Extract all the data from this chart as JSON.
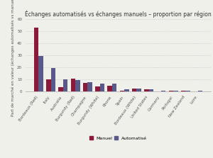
{
  "title": "Échanges automatisés vs échanges manuels – proportion par région",
  "ylabel": "Part de marché en valeur (échanges automatisés vs manuels)",
  "categories": [
    "Bordeaux (Red)",
    "Italy",
    "Australia",
    "Burgundy (Red)",
    "Champagne",
    "Burgundy (White)",
    "Rhone",
    "Spain",
    "Bordeaux (White)",
    "United States",
    "Germany",
    "Portugal",
    "New Zealand",
    "Loire"
  ],
  "manuel": [
    53,
    10,
    3.5,
    10.5,
    7,
    4.5,
    5,
    1,
    2.5,
    2,
    0.3,
    1,
    0.5,
    0.3
  ],
  "automatise": [
    29.5,
    19.5,
    10,
    9.5,
    8,
    6.5,
    6.5,
    2,
    2.5,
    2,
    0.8,
    1,
    0.8,
    0.8
  ],
  "color_manuel": "#8B1A3A",
  "color_automatise": "#5A5A8A",
  "ylim": [
    0,
    60
  ],
  "yticks": [
    0,
    10,
    20,
    30,
    40,
    50,
    60
  ],
  "background_color": "#f0f0eb",
  "title_fontsize": 5.5,
  "ylabel_fontsize": 4.0,
  "tick_fontsize": 4.0,
  "legend_fontsize": 4.5
}
